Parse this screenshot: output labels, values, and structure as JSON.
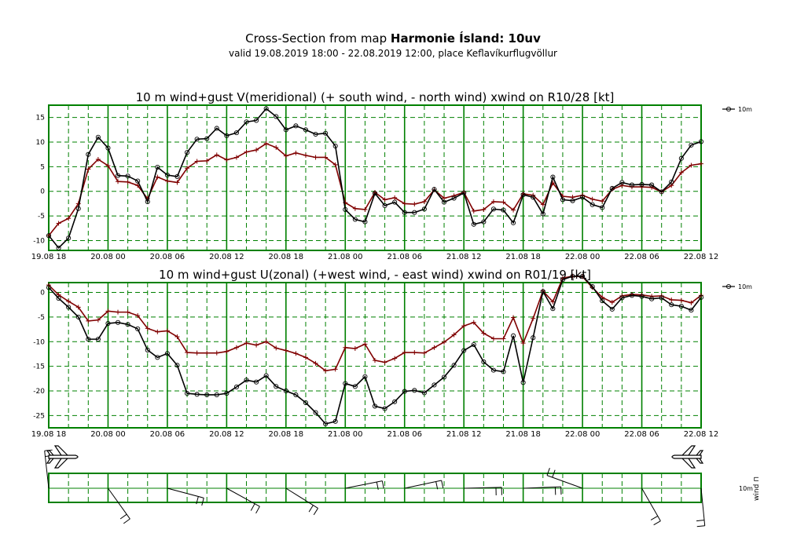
{
  "header": {
    "title_prefix": "Cross-Section from map ",
    "title_bold": "Harmonie Ísland: 10uv",
    "subtitle": "valid 19.08.2019 18:00 - 22.08.2019 12:00, place Keflavíkurflugvöllur"
  },
  "colors": {
    "grid": "#008000",
    "mean": "#000000",
    "gust": "#800000"
  },
  "chart_data": [
    {
      "type": "line",
      "title": "10 m wind+gust V(meridional) (+ south wind, - north wind) xwind on R10/28 [kt]",
      "x_tick_labels": [
        "19.08 18",
        "20.08 00",
        "20.08 06",
        "20.08 12",
        "20.08 18",
        "21.08 00",
        "21.08 06",
        "21.08 12",
        "21.08 18",
        "22.08 00",
        "22.08 06",
        "22.08 12"
      ],
      "x_range_hours": [
        0,
        66
      ],
      "ylim": [
        -12,
        17.5
      ],
      "yticks": [
        -10,
        -5,
        0,
        5,
        10,
        15
      ],
      "legend": "10m",
      "series": [
        {
          "name": "10m",
          "values": [
            -9,
            -11.5,
            -9.5,
            -3.5,
            7.5,
            11,
            8.8,
            3.2,
            3.1,
            2.1,
            -2.1,
            4.9,
            3.3,
            3,
            7.9,
            10.6,
            10.7,
            12.8,
            11.3,
            11.9,
            14.1,
            14.4,
            16.8,
            15.2,
            12.5,
            13.3,
            12.5,
            11.6,
            11.8,
            9.2,
            -3.7,
            -5.7,
            -6.2,
            -0.4,
            -2.9,
            -2.2,
            -4.3,
            -4.3,
            -3.6,
            0.4,
            -2.2,
            -1.4,
            -0.3,
            -6.7,
            -6.2,
            -3.6,
            -3.8,
            -6.4,
            -0.7,
            -1.2,
            -4.6,
            2.9,
            -1.7,
            -1.9,
            -1.2,
            -2.7,
            -3.3,
            0.6,
            1.8,
            1.3,
            1.4,
            1.3,
            -0.1,
            1.9,
            6.7,
            9.4,
            10.1
          ]
        },
        {
          "values": [
            -9,
            -6.5,
            -5.5,
            -2.5,
            4.5,
            6.5,
            5.2,
            2,
            1.9,
            1.2,
            -1.5,
            2.9,
            2.1,
            1.8,
            4.7,
            6.1,
            6.2,
            7.4,
            6.4,
            6.9,
            8,
            8.4,
            9.7,
            8.9,
            7.2,
            7.8,
            7.3,
            6.9,
            6.9,
            5.4,
            -2.3,
            -3.5,
            -3.7,
            -0.2,
            -1.7,
            -1.3,
            -2.5,
            -2.6,
            -2.1,
            0.3,
            -1.4,
            -0.9,
            -0.2,
            -4,
            -3.7,
            -2.1,
            -2.2,
            -3.8,
            -0.5,
            -0.8,
            -2.7,
            1.7,
            -1,
            -1.2,
            -0.8,
            -1.6,
            -2,
            0.4,
            1.2,
            0.9,
            0.9,
            0.8,
            -0.1,
            1.2,
            3.8,
            5.3,
            5.6
          ]
        }
      ]
    },
    {
      "type": "line",
      "title": "10 m wind+gust U(zonal) (+west wind, - east wind) xwind on R01/19 [kt]",
      "x_tick_labels": [
        "19.08 18",
        "20.08 00",
        "20.08 06",
        "20.08 12",
        "20.08 18",
        "21.08 00",
        "21.08 06",
        "21.08 12",
        "21.08 18",
        "22.08 00",
        "22.08 06",
        "22.08 12"
      ],
      "x_range_hours": [
        0,
        66
      ],
      "ylim": [
        -27.5,
        2
      ],
      "yticks": [
        -25,
        -20,
        -15,
        -10,
        -5,
        0
      ],
      "legend": "10m",
      "series": [
        {
          "name": "10m",
          "values": [
            1,
            -1.2,
            -3,
            -5,
            -9.5,
            -9.5,
            -6.3,
            -6.1,
            -6.5,
            -7.4,
            -11.7,
            -13.2,
            -12.4,
            -14.8,
            -20.5,
            -20.7,
            -20.8,
            -20.8,
            -20.5,
            -19.2,
            -17.8,
            -18.2,
            -16.9,
            -19.1,
            -20,
            -20.8,
            -22.4,
            -24.4,
            -26.7,
            -26.2,
            -18.5,
            -19.1,
            -17.1,
            -23.1,
            -23.6,
            -22.2,
            -20.1,
            -19.9,
            -20.4,
            -18.8,
            -17.2,
            -14.8,
            -11.8,
            -10.6,
            -14.1,
            -15.8,
            -16.1,
            -8.8,
            -18.3,
            -9.2,
            0.2,
            -3.3,
            2.6,
            3.3,
            3.3,
            1.2,
            -1.7,
            -3.4,
            -1.1,
            -0.6,
            -0.8,
            -1.3,
            -1.1,
            -2.5,
            -2.8,
            -3.6,
            -1
          ]
        },
        {
          "values": [
            1.5,
            -0.5,
            -1.8,
            -3,
            -5.8,
            -5.6,
            -3.8,
            -4,
            -4,
            -4.7,
            -7.3,
            -8,
            -7.8,
            -9,
            -12.2,
            -12.3,
            -12.3,
            -12.3,
            -12,
            -11.2,
            -10.3,
            -10.7,
            -10,
            -11.3,
            -11.8,
            -12.4,
            -13.2,
            -14.4,
            -15.9,
            -15.6,
            -11.2,
            -11.4,
            -10.5,
            -13.8,
            -14.2,
            -13.4,
            -12.2,
            -12.2,
            -12.3,
            -11.2,
            -10.1,
            -8.6,
            -6.8,
            -6.1,
            -8.3,
            -9.4,
            -9.4,
            -5.1,
            -10.3,
            -5.3,
            0.3,
            -1.9,
            2.9,
            3.3,
            3.2,
            1,
            -1,
            -2,
            -0.7,
            -0.4,
            -0.5,
            -0.8,
            -0.7,
            -1.5,
            -1.6,
            -2.1,
            -0.6
          ]
        }
      ]
    }
  ],
  "wind_panel": {
    "label_10m": "10m",
    "label_wind": "wind ⊓"
  }
}
